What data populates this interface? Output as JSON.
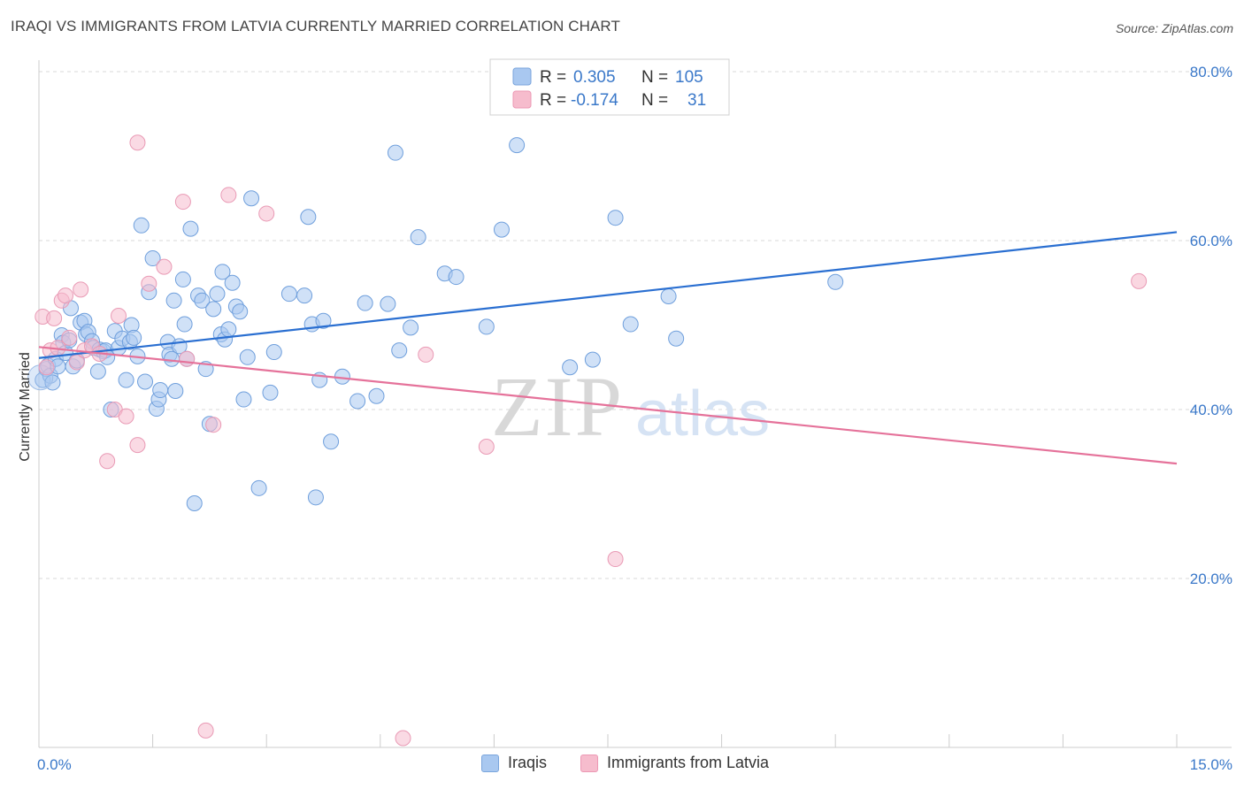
{
  "title": "IRAQI VS IMMIGRANTS FROM LATVIA CURRENTLY MARRIED CORRELATION CHART",
  "source": "Source: ZipAtlas.com",
  "watermark": {
    "zip": "ZIP",
    "atlas": "atlas"
  },
  "colors": {
    "blue": "#3a78c9",
    "blue_fill": "#a9c8f0",
    "blue_line": "#2a6fd1",
    "pink_fill": "#f6bccd",
    "pink_line": "#e5729a",
    "grid": "#d9d9d9"
  },
  "legend": {
    "rows": [
      {
        "r_label": "R =",
        "r_value": "0.305",
        "n_label": "N =",
        "n_value": "105",
        "series": "blue"
      },
      {
        "r_label": "R =",
        "r_value": "-0.174",
        "n_label": "N =",
        "n_value": "31",
        "series": "pink"
      }
    ]
  },
  "bottom_legend": {
    "iraqis": "Iraqis",
    "latvia": "Immigrants from Latvia"
  },
  "chart_data": {
    "type": "scatter",
    "title": "IRAQI VS IMMIGRANTS FROM LATVIA CURRENTLY MARRIED CORRELATION CHART",
    "xlabel": "",
    "ylabel": "Currently Married",
    "xlim": [
      0,
      15
    ],
    "ylim": [
      0,
      84
    ],
    "x_tick_labels": [
      {
        "value": 0,
        "label": "0.0%"
      },
      {
        "value": 15,
        "label": "15.0%"
      }
    ],
    "y_tick_labels": [
      {
        "value": 20,
        "label": "20.0%"
      },
      {
        "value": 40,
        "label": "40.0%"
      },
      {
        "value": 60,
        "label": "60.0%"
      },
      {
        "value": 80,
        "label": "80.0%"
      }
    ],
    "grid": true,
    "legend_position": "top-center",
    "series": [
      {
        "name": "Iraqis",
        "color": "#3a78c9",
        "trend": {
          "x": [
            0,
            15
          ],
          "y": [
            46.1,
            61.0
          ]
        },
        "points": [
          [
            0.05,
            43.5
          ],
          [
            0.1,
            44.8
          ],
          [
            0.12,
            45.2
          ],
          [
            0.15,
            44.0
          ],
          [
            0.18,
            43.2
          ],
          [
            0.22,
            46.0
          ],
          [
            0.25,
            45.1
          ],
          [
            0.3,
            48.8
          ],
          [
            0.32,
            47.9
          ],
          [
            0.35,
            46.7
          ],
          [
            0.4,
            48.2
          ],
          [
            0.42,
            52.0
          ],
          [
            0.45,
            45.1
          ],
          [
            0.5,
            45.8
          ],
          [
            0.55,
            50.3
          ],
          [
            0.6,
            50.5
          ],
          [
            0.62,
            48.9
          ],
          [
            0.65,
            49.2
          ],
          [
            0.7,
            48.1
          ],
          [
            0.72,
            47.3
          ],
          [
            0.78,
            44.5
          ],
          [
            0.8,
            47.1
          ],
          [
            0.85,
            46.9
          ],
          [
            0.88,
            47.0
          ],
          [
            0.9,
            46.2
          ],
          [
            0.95,
            40.0
          ],
          [
            1.0,
            49.3
          ],
          [
            1.05,
            47.3
          ],
          [
            1.1,
            48.4
          ],
          [
            1.15,
            43.5
          ],
          [
            1.2,
            48.0
          ],
          [
            1.22,
            50.0
          ],
          [
            1.25,
            48.5
          ],
          [
            1.3,
            46.3
          ],
          [
            1.35,
            61.8
          ],
          [
            1.4,
            43.3
          ],
          [
            1.45,
            53.9
          ],
          [
            1.5,
            57.9
          ],
          [
            1.55,
            40.1
          ],
          [
            1.58,
            41.2
          ],
          [
            1.6,
            42.3
          ],
          [
            1.7,
            48.0
          ],
          [
            1.72,
            46.5
          ],
          [
            1.75,
            46.0
          ],
          [
            1.78,
            52.9
          ],
          [
            1.8,
            42.2
          ],
          [
            1.85,
            47.5
          ],
          [
            1.9,
            55.4
          ],
          [
            1.92,
            50.1
          ],
          [
            1.95,
            46.0
          ],
          [
            2.0,
            61.4
          ],
          [
            2.05,
            28.9
          ],
          [
            2.1,
            53.5
          ],
          [
            2.15,
            52.9
          ],
          [
            2.2,
            44.8
          ],
          [
            2.25,
            38.3
          ],
          [
            2.3,
            51.9
          ],
          [
            2.35,
            53.7
          ],
          [
            2.4,
            48.9
          ],
          [
            2.42,
            56.3
          ],
          [
            2.45,
            48.3
          ],
          [
            2.5,
            49.5
          ],
          [
            2.55,
            55.0
          ],
          [
            2.6,
            52.2
          ],
          [
            2.65,
            51.6
          ],
          [
            2.7,
            41.2
          ],
          [
            2.75,
            46.2
          ],
          [
            2.8,
            65.0
          ],
          [
            2.9,
            30.7
          ],
          [
            3.05,
            42.0
          ],
          [
            3.1,
            46.8
          ],
          [
            3.3,
            53.7
          ],
          [
            3.5,
            53.5
          ],
          [
            3.55,
            62.8
          ],
          [
            3.6,
            50.1
          ],
          [
            3.65,
            29.6
          ],
          [
            3.7,
            43.5
          ],
          [
            3.75,
            50.5
          ],
          [
            3.85,
            36.2
          ],
          [
            4.0,
            43.9
          ],
          [
            4.2,
            41.0
          ],
          [
            4.3,
            52.6
          ],
          [
            4.45,
            41.6
          ],
          [
            4.6,
            52.5
          ],
          [
            4.7,
            70.4
          ],
          [
            4.75,
            47.0
          ],
          [
            4.9,
            49.7
          ],
          [
            5.0,
            60.4
          ],
          [
            5.35,
            56.1
          ],
          [
            5.5,
            55.7
          ],
          [
            5.9,
            49.8
          ],
          [
            6.1,
            61.3
          ],
          [
            6.3,
            71.3
          ],
          [
            7.0,
            45.0
          ],
          [
            7.3,
            45.9
          ],
          [
            7.6,
            62.7
          ],
          [
            7.8,
            50.1
          ],
          [
            8.3,
            53.4
          ],
          [
            8.4,
            48.4
          ],
          [
            10.5,
            55.1
          ]
        ]
      },
      {
        "name": "Immigrants from Latvia",
        "color": "#e5729a",
        "trend": {
          "x": [
            0,
            15
          ],
          "y": [
            47.4,
            33.6
          ]
        },
        "points": [
          [
            0.05,
            51.0
          ],
          [
            0.1,
            45.0
          ],
          [
            0.15,
            47.0
          ],
          [
            0.2,
            50.8
          ],
          [
            0.25,
            47.3
          ],
          [
            0.3,
            52.9
          ],
          [
            0.35,
            53.5
          ],
          [
            0.4,
            48.5
          ],
          [
            0.5,
            45.6
          ],
          [
            0.55,
            54.2
          ],
          [
            0.6,
            47.0
          ],
          [
            0.7,
            47.5
          ],
          [
            0.8,
            46.6
          ],
          [
            0.9,
            33.9
          ],
          [
            1.0,
            40.0
          ],
          [
            1.05,
            51.1
          ],
          [
            1.15,
            39.2
          ],
          [
            1.3,
            35.8
          ],
          [
            1.3,
            71.6
          ],
          [
            1.45,
            54.9
          ],
          [
            1.65,
            56.9
          ],
          [
            1.9,
            64.6
          ],
          [
            1.95,
            46.0
          ],
          [
            2.2,
            2.0
          ],
          [
            2.3,
            38.2
          ],
          [
            2.5,
            65.4
          ],
          [
            3.0,
            63.2
          ],
          [
            4.8,
            1.1
          ],
          [
            5.1,
            46.5
          ],
          [
            5.9,
            35.6
          ],
          [
            7.6,
            22.3
          ]
        ]
      }
    ],
    "extra_points": [
      [
        14.5,
        55.2
      ]
    ]
  }
}
